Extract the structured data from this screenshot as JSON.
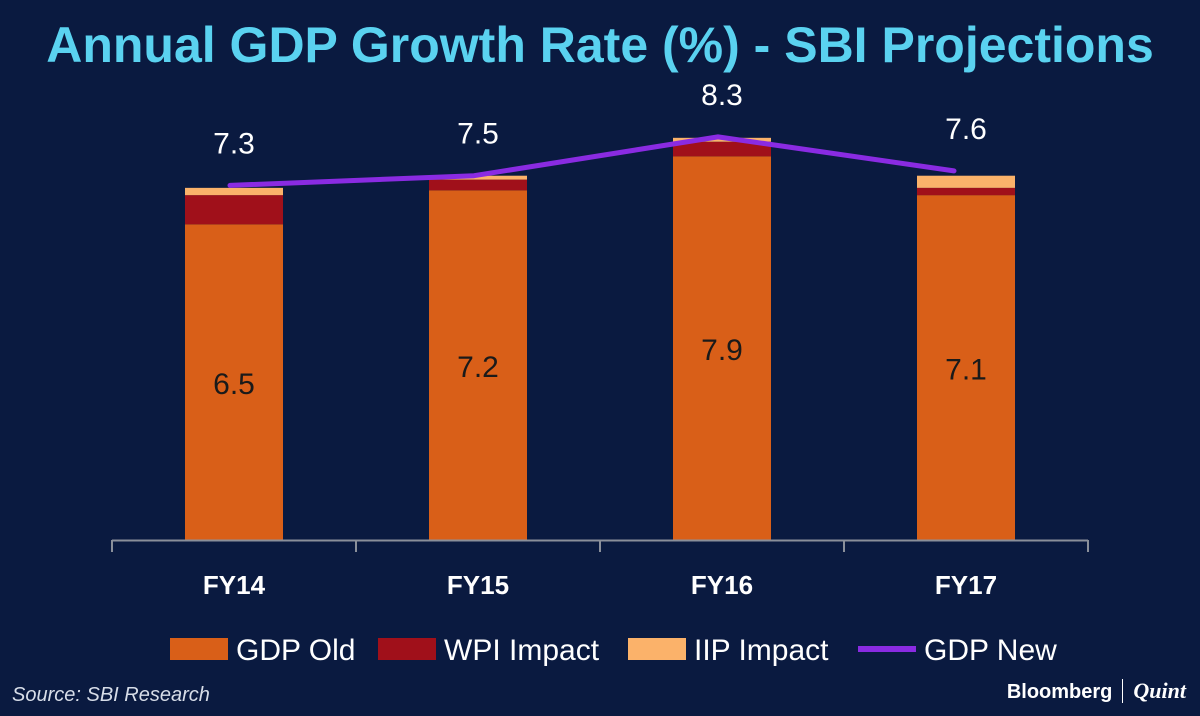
{
  "chart_data": {
    "type": "bar",
    "title": "Annual GDP Growth Rate (%) - SBI Projections",
    "categories": [
      "FY14",
      "FY15",
      "FY16",
      "FY17"
    ],
    "stacked": true,
    "series": [
      {
        "name": "GDP Old",
        "kind": "bar",
        "color": "#d95f18",
        "values": [
          6.5,
          7.2,
          7.9,
          7.1
        ],
        "labels": [
          "6.5",
          "7.2",
          "7.9",
          "7.1"
        ]
      },
      {
        "name": "WPI Impact",
        "kind": "bar",
        "color": "#a0101a",
        "values": [
          0.6,
          0.22,
          0.3,
          0.15
        ]
      },
      {
        "name": "IIP Impact",
        "kind": "bar",
        "color": "#fbb26a",
        "values": [
          0.15,
          0.08,
          0.08,
          0.25
        ]
      },
      {
        "name": "GDP New",
        "kind": "line",
        "color": "#8a2be2",
        "values": [
          7.3,
          7.5,
          8.3,
          7.6
        ],
        "labels": [
          "7.3",
          "7.5",
          "8.3",
          "7.6"
        ]
      }
    ],
    "xlabel": "",
    "ylabel": "",
    "ylim": [
      0,
      8.4
    ],
    "legend": "bottom",
    "grid": false
  },
  "source": "Source: SBI Research",
  "brand": {
    "left": "Bloomberg",
    "right": "Quint"
  },
  "colors": {
    "background": "#0a1a40",
    "title": "#5ad2f0",
    "axis": "#8a8f9a"
  }
}
